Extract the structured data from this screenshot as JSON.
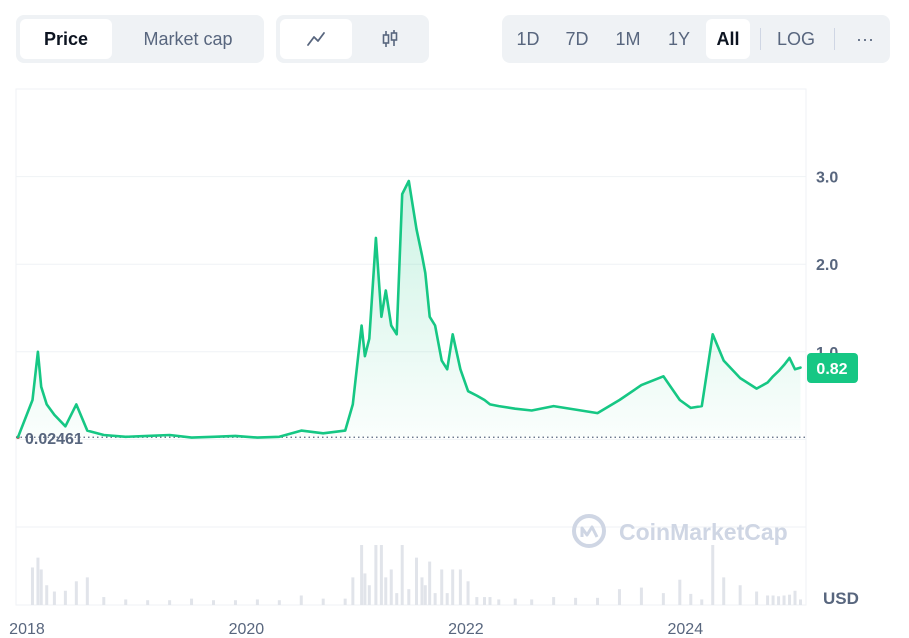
{
  "toolbar": {
    "metric_tabs": [
      "Price",
      "Market cap"
    ],
    "active_metric": "Price",
    "chart_type_icons": [
      "line-chart-icon",
      "candlestick-icon"
    ],
    "ranges": [
      "1D",
      "7D",
      "1M",
      "1Y",
      "All"
    ],
    "active_range": "All",
    "log_label": "LOG",
    "more_label": "···"
  },
  "watermark": "CoinMarketCap",
  "currency_label": "USD",
  "colors": {
    "line": "#16c784",
    "below_open": "#ea3943",
    "current_badge": "#16c784",
    "grid": "#eff2f5",
    "volume": "#e1e4ea"
  },
  "chart_data": {
    "type": "area",
    "title": "",
    "xlabel": "",
    "ylabel": "",
    "x_tick_labels": [
      "2018",
      "2020",
      "2022",
      "2024"
    ],
    "y_tick_labels": [
      "3.0",
      "2.0",
      "1.0"
    ],
    "ylim": [
      -1.0,
      4.0
    ],
    "xlim": [
      2017.9,
      2025.1
    ],
    "grid": true,
    "open_price": 0.02461,
    "open_price_label": "0.02461",
    "current_price": 0.82,
    "current_price_label": "0.82",
    "series": [
      {
        "x": [
          2018.05,
          2018.1,
          2018.13,
          2018.18,
          2018.25,
          2018.35,
          2018.45,
          2018.55,
          2018.7,
          2018.9,
          2019.1,
          2019.3,
          2019.5,
          2019.7,
          2019.9,
          2020.1,
          2020.3,
          2020.5,
          2020.7,
          2020.9,
          2020.97,
          2021.05,
          2021.08,
          2021.12,
          2021.18,
          2021.23,
          2021.27,
          2021.32,
          2021.37,
          2021.42,
          2021.48,
          2021.55,
          2021.6,
          2021.63,
          2021.67,
          2021.72,
          2021.78,
          2021.83,
          2021.88,
          2021.95,
          2022.02,
          2022.1,
          2022.17,
          2022.22,
          2022.3,
          2022.45,
          2022.6,
          2022.8,
          2023.0,
          2023.2,
          2023.4,
          2023.6,
          2023.8,
          2023.95,
          2024.05,
          2024.15,
          2024.25,
          2024.35,
          2024.5,
          2024.65,
          2024.75,
          2024.8,
          2024.85,
          2024.9,
          2024.95,
          2025.0,
          2025.05
        ],
        "values": [
          0.45,
          1.0,
          0.6,
          0.4,
          0.28,
          0.15,
          0.4,
          0.1,
          0.05,
          0.03,
          0.04,
          0.05,
          0.02,
          0.03,
          0.04,
          0.02,
          0.03,
          0.1,
          0.07,
          0.1,
          0.4,
          1.3,
          0.95,
          1.15,
          2.3,
          1.4,
          1.7,
          1.3,
          1.2,
          2.8,
          2.95,
          2.4,
          2.1,
          1.9,
          1.4,
          1.3,
          0.9,
          0.8,
          1.2,
          0.8,
          0.55,
          0.5,
          0.45,
          0.4,
          0.38,
          0.35,
          0.33,
          0.38,
          0.34,
          0.3,
          0.45,
          0.62,
          0.72,
          0.45,
          0.36,
          0.38,
          1.2,
          0.9,
          0.7,
          0.58,
          0.65,
          0.72,
          0.78,
          0.85,
          0.93,
          0.8,
          0.82
        ]
      }
    ]
  }
}
